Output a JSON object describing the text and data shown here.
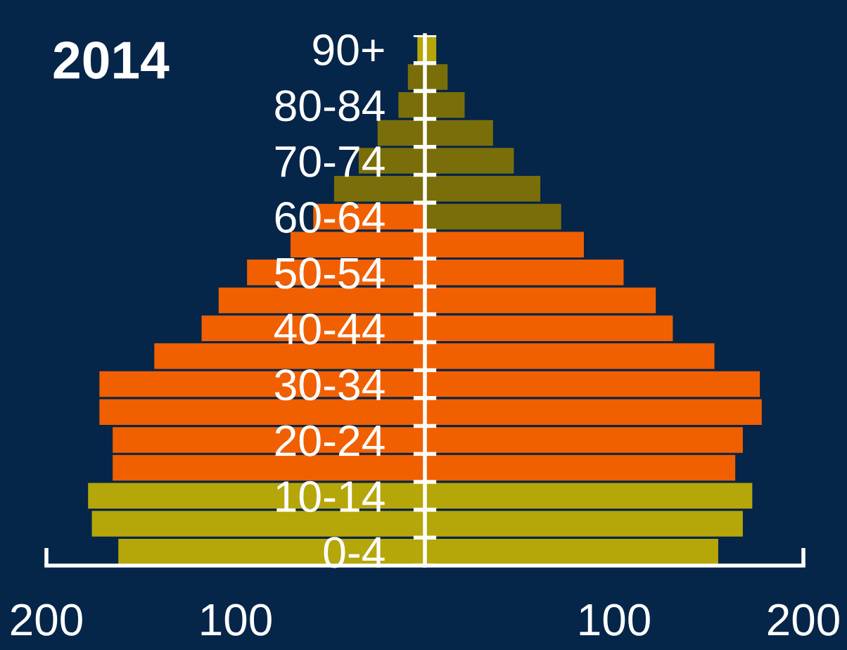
{
  "chart_data": {
    "type": "bar",
    "orientation": "horizontal",
    "stacked": true,
    "title": "2014",
    "categories": [
      "90+",
      null,
      "80-84",
      null,
      "70-74",
      null,
      "60-64",
      null,
      "50-54",
      null,
      "40-44",
      null,
      "30-34",
      null,
      "20-24",
      null,
      "10-14",
      null,
      "0-4"
    ],
    "series": [
      {
        "values": [
          -4,
          -9,
          -14,
          -25,
          -35,
          -48,
          -59,
          -71,
          -94,
          -109,
          -118,
          -143,
          -172,
          -172,
          -165,
          -165,
          -178,
          -176,
          -162
        ],
        "colors": [
          "#b5a60a",
          "#7a6e0a",
          "#7a6e0a",
          "#7a6e0a",
          "#7a6e0a",
          "#7a6e0a",
          "#f06000",
          "#f06000",
          "#f06000",
          "#f06000",
          "#f06000",
          "#f06000",
          "#f06000",
          "#f06000",
          "#f06000",
          "#f06000",
          "#b5a60a",
          "#b5a60a",
          "#b5a60a"
        ]
      },
      {
        "values": [
          6,
          12,
          21,
          36,
          47,
          61,
          72,
          84,
          105,
          122,
          131,
          153,
          177,
          178,
          168,
          164,
          173,
          168,
          155
        ],
        "colors": [
          "#b5a60a",
          "#7a6e0a",
          "#7a6e0a",
          "#7a6e0a",
          "#7a6e0a",
          "#7a6e0a",
          "#7a6e0a",
          "#f06000",
          "#f06000",
          "#f06000",
          "#f06000",
          "#f06000",
          "#f06000",
          "#f06000",
          "#f06000",
          "#f06000",
          "#b5a60a",
          "#b5a60a",
          "#b5a60a"
        ]
      }
    ],
    "xlim": [
      -200,
      200
    ],
    "xticks": [
      {
        "value": -200,
        "label": "200"
      },
      {
        "value": -100,
        "label": "100"
      },
      {
        "value": 100,
        "label": "100"
      },
      {
        "value": 200,
        "label": "200"
      }
    ]
  }
}
